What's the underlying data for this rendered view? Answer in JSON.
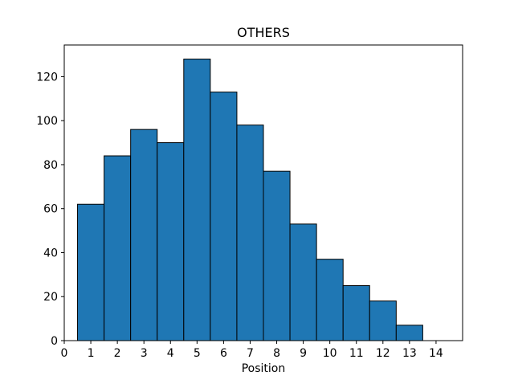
{
  "chart_data": {
    "type": "bar",
    "title": "OTHERS",
    "xlabel": "Position",
    "ylabel": "",
    "categories": [
      1,
      2,
      3,
      4,
      5,
      6,
      7,
      8,
      9,
      10,
      11,
      12,
      13
    ],
    "values": [
      62,
      84,
      96,
      90,
      128,
      113,
      98,
      77,
      53,
      37,
      25,
      18,
      7
    ],
    "bar_width": 1.0,
    "xlim": [
      0,
      15
    ],
    "ylim": [
      0,
      134.4
    ],
    "xticks": [
      0,
      1,
      2,
      3,
      4,
      5,
      6,
      7,
      8,
      9,
      10,
      11,
      12,
      13,
      14
    ],
    "yticks": [
      0,
      20,
      40,
      60,
      80,
      100,
      120
    ],
    "grid": false,
    "legend_position": "none",
    "colors": {
      "bar_fill": "#1f77b4",
      "bar_edge": "#000000",
      "spine": "#000000",
      "text": "#000000",
      "background": "#ffffff"
    }
  }
}
